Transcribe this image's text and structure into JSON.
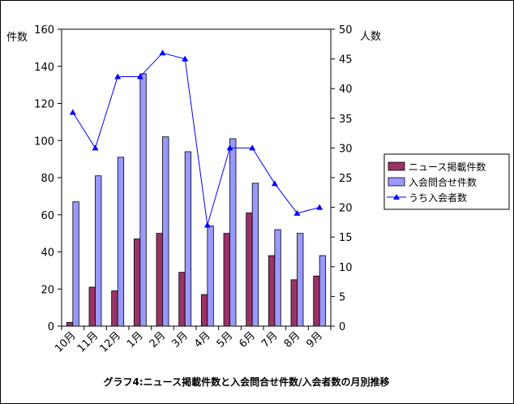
{
  "chart_data": {
    "type": "bar",
    "title": "グラフ4:ニュース掲載件数と入会問合せ件数/入会者数の月別推移",
    "categories": [
      "10月",
      "11月",
      "12月",
      "1月",
      "2月",
      "3月",
      "4月",
      "5月",
      "6月",
      "7月",
      "8月",
      "9月"
    ],
    "left_axis": {
      "label": "件数",
      "min": 0,
      "max": 160,
      "ticks": [
        "0",
        "20",
        "40",
        "60",
        "80",
        "100",
        "120",
        "140",
        "160"
      ]
    },
    "right_axis": {
      "label": "人数",
      "min": 0,
      "max": 50,
      "ticks": [
        "0",
        "5",
        "10",
        "15",
        "20",
        "25",
        "30",
        "35",
        "40",
        "45",
        "50"
      ]
    },
    "series": [
      {
        "name": "ニュース掲載件数",
        "type": "bar",
        "axis": "left",
        "color": "#993366",
        "values": [
          2,
          21,
          19,
          47,
          50,
          29,
          17,
          50,
          61,
          38,
          25,
          27
        ]
      },
      {
        "name": "入会問合せ件数",
        "type": "bar",
        "axis": "left",
        "color": "#9999FF",
        "values": [
          67,
          81,
          91,
          136,
          102,
          94,
          54,
          101,
          77,
          52,
          50,
          38
        ]
      },
      {
        "name": "うち入会者数",
        "type": "line",
        "axis": "right",
        "color": "#0000FF",
        "values": [
          36,
          30,
          42,
          42,
          46,
          45,
          17,
          30,
          30,
          24,
          19,
          20
        ]
      }
    ],
    "legend_position": "right"
  }
}
